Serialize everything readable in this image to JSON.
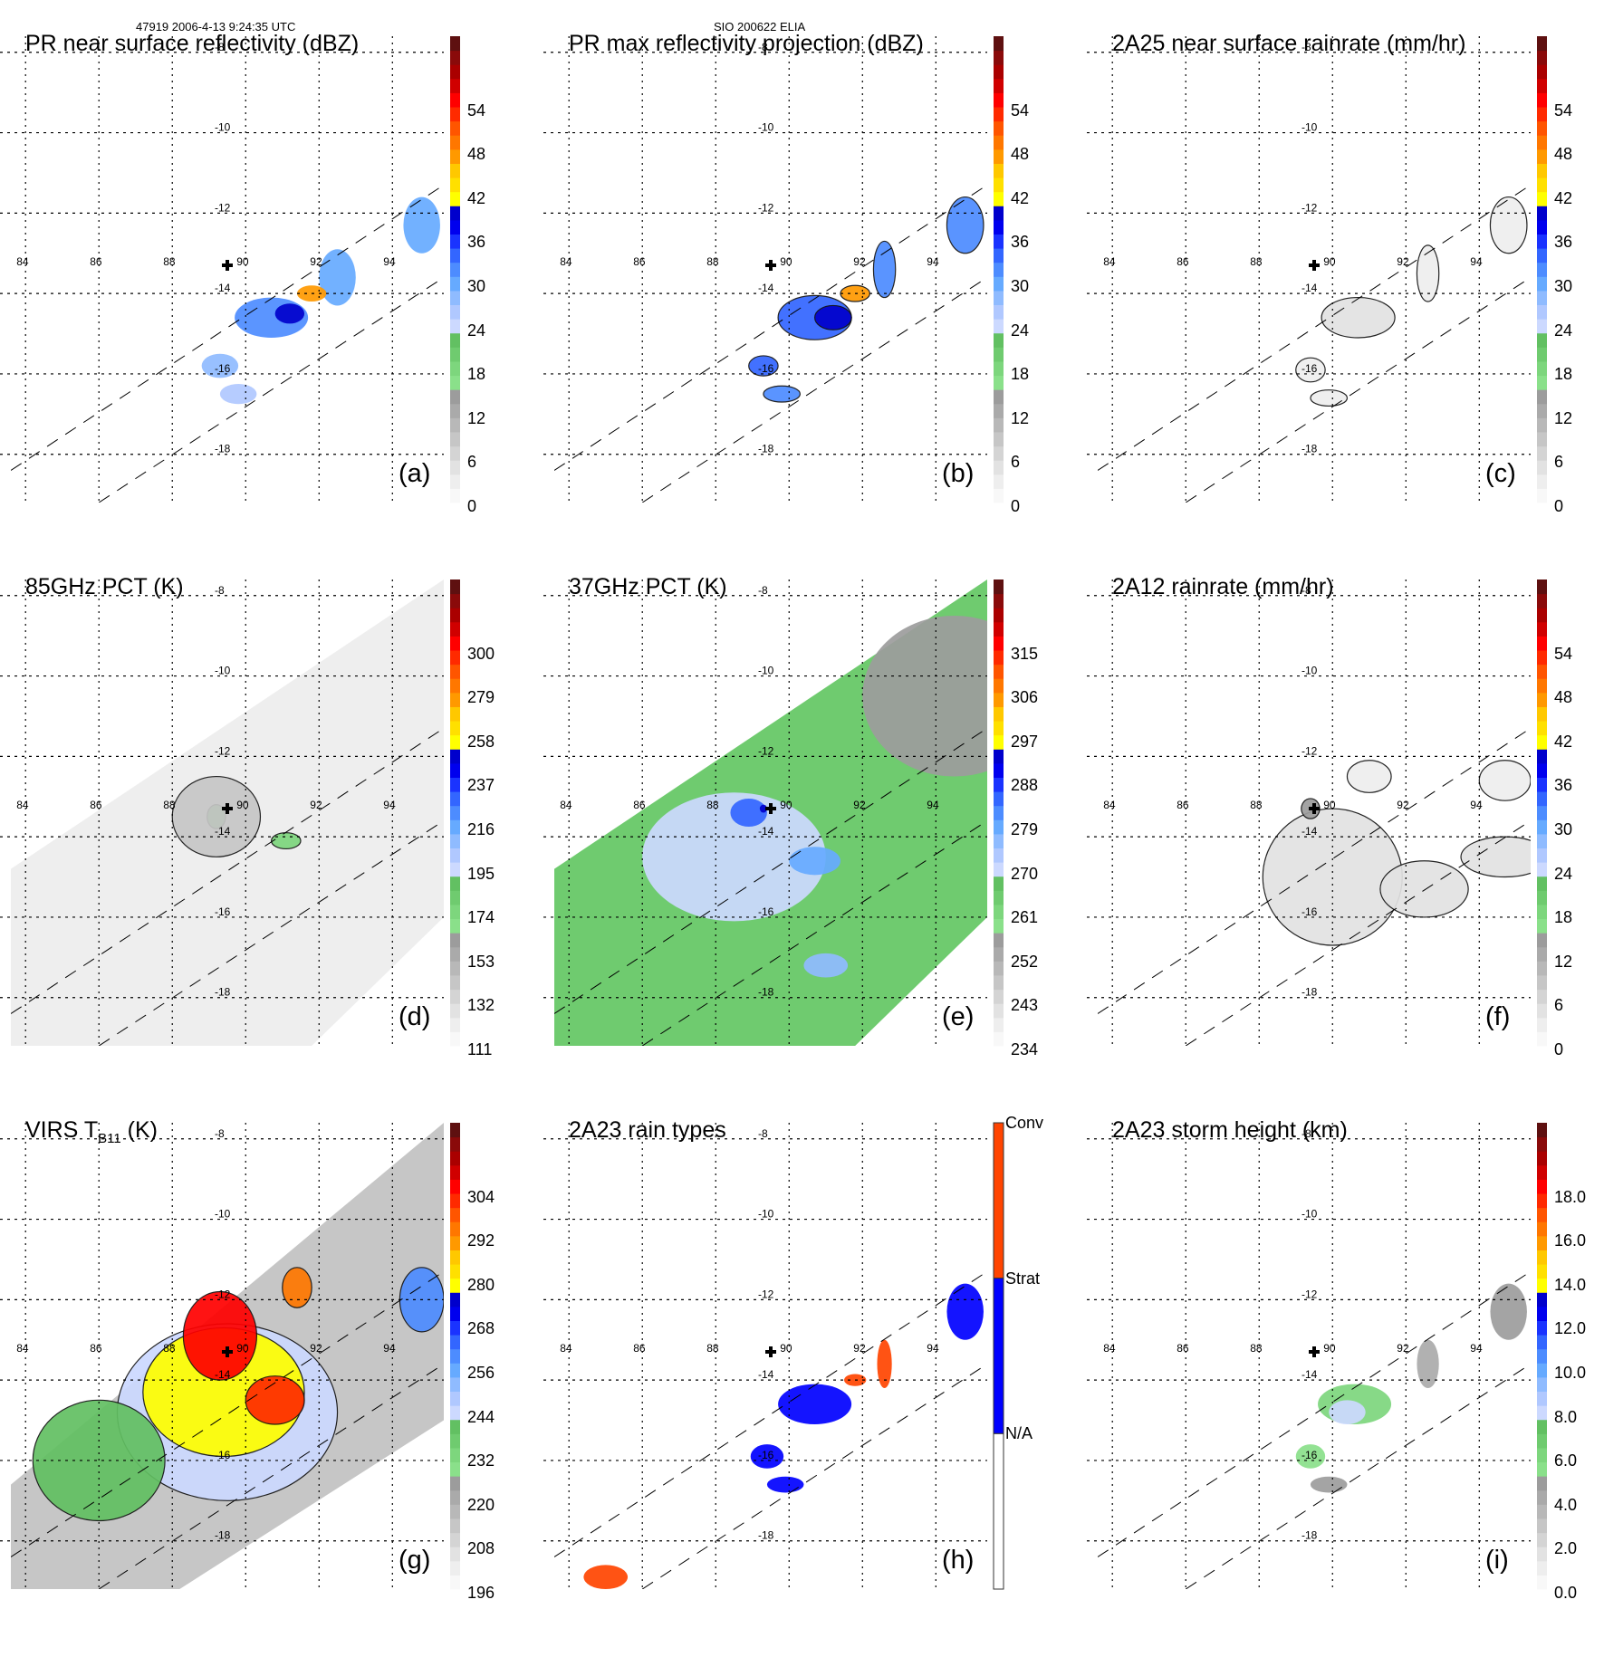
{
  "header": {
    "left": "47919 2006-4-13 9:24:35 UTC",
    "center": "SIO 200622 ELIA"
  },
  "chart_data": {
    "type": "heatmap",
    "grid": {
      "longitudes": [
        84,
        86,
        88,
        90,
        92,
        94
      ],
      "longitude_labels": [
        "84",
        "86",
        "88",
        "90",
        "92",
        "94"
      ],
      "latitudes": [
        -8,
        -10,
        -12,
        -14,
        -16,
        -18
      ],
      "latitude_labels": [
        "-8",
        "-10",
        "-12",
        "-14",
        "-16",
        "-18"
      ],
      "lon_range": [
        83.6,
        95.4
      ],
      "lat_range": [
        -19.2,
        -7.6
      ],
      "gridlines": "dotted",
      "storm_center": {
        "lon": 89.5,
        "lat": -13.3,
        "marker": "plus"
      },
      "swath_edges": [
        {
          "from": [
            83.6,
            -18.4
          ],
          "to": [
            95.4,
            -11.3
          ]
        },
        {
          "from": [
            86.0,
            -19.2
          ],
          "to": [
            95.4,
            -13.6
          ]
        }
      ]
    },
    "panels": [
      {
        "id": "a",
        "label": "(a)",
        "title": "PR near surface reflectivity (dBZ)",
        "colorbar": {
          "ticks": [
            "0",
            "6",
            "12",
            "18",
            "24",
            "30",
            "36",
            "42",
            "48",
            "54"
          ],
          "range": [
            0,
            60
          ],
          "kind": "continuous"
        },
        "field": "pr_swath",
        "features": [
          {
            "lon": 90.7,
            "lat": -14.6,
            "rx": 1.0,
            "ry": 0.5,
            "value": 30
          },
          {
            "lon": 91.2,
            "lat": -14.5,
            "rx": 0.4,
            "ry": 0.25,
            "value": 38
          },
          {
            "lon": 92.5,
            "lat": -13.6,
            "rx": 0.5,
            "ry": 0.7,
            "value": 28
          },
          {
            "lon": 89.3,
            "lat": -15.8,
            "rx": 0.5,
            "ry": 0.3,
            "value": 27
          },
          {
            "lon": 89.8,
            "lat": -16.5,
            "rx": 0.5,
            "ry": 0.25,
            "value": 25
          },
          {
            "lon": 94.8,
            "lat": -12.3,
            "rx": 0.5,
            "ry": 0.7,
            "value": 28
          },
          {
            "lon": 91.8,
            "lat": -14.0,
            "rx": 0.4,
            "ry": 0.2,
            "value": 44
          }
        ]
      },
      {
        "id": "b",
        "label": "(b)",
        "title": "PR max reflectivity projection (dBZ)",
        "colorbar": {
          "ticks": [
            "0",
            "6",
            "12",
            "18",
            "24",
            "30",
            "36",
            "42",
            "48",
            "54"
          ],
          "range": [
            0,
            60
          ],
          "kind": "continuous"
        },
        "field": "pr_swath",
        "features": [
          {
            "lon": 90.7,
            "lat": -14.6,
            "rx": 1.0,
            "ry": 0.55,
            "value": 31
          },
          {
            "lon": 91.2,
            "lat": -14.6,
            "rx": 0.5,
            "ry": 0.3,
            "value": 38
          },
          {
            "lon": 92.6,
            "lat": -13.4,
            "rx": 0.3,
            "ry": 0.7,
            "value": 30
          },
          {
            "lon": 89.3,
            "lat": -15.8,
            "rx": 0.4,
            "ry": 0.25,
            "value": 32
          },
          {
            "lon": 89.8,
            "lat": -16.5,
            "rx": 0.5,
            "ry": 0.2,
            "value": 30
          },
          {
            "lon": 94.8,
            "lat": -12.3,
            "rx": 0.5,
            "ry": 0.7,
            "value": 30
          },
          {
            "lon": 91.8,
            "lat": -14.0,
            "rx": 0.4,
            "ry": 0.2,
            "value": 44
          }
        ]
      },
      {
        "id": "c",
        "label": "(c)",
        "title": "2A25 near surface rainrate (mm/hr)",
        "colorbar": {
          "ticks": [
            "0",
            "6",
            "12",
            "18",
            "24",
            "30",
            "36",
            "42",
            "48",
            "54"
          ],
          "range": [
            0,
            60
          ],
          "kind": "continuous"
        },
        "field": "pr_swath",
        "features": [
          {
            "lon": 90.7,
            "lat": -14.6,
            "rx": 1.0,
            "ry": 0.5,
            "value": 4
          },
          {
            "lon": 92.6,
            "lat": -13.5,
            "rx": 0.3,
            "ry": 0.7,
            "value": 3
          },
          {
            "lon": 89.4,
            "lat": -15.9,
            "rx": 0.4,
            "ry": 0.3,
            "value": 3
          },
          {
            "lon": 89.9,
            "lat": -16.6,
            "rx": 0.5,
            "ry": 0.2,
            "value": 3
          },
          {
            "lon": 94.8,
            "lat": -12.3,
            "rx": 0.5,
            "ry": 0.7,
            "value": 3
          }
        ]
      },
      {
        "id": "d",
        "label": "(d)",
        "title": "85GHz PCT (K)",
        "colorbar": {
          "ticks": [
            "111",
            "132",
            "153",
            "174",
            "195",
            "216",
            "237",
            "258",
            "279",
            "300"
          ],
          "range": [
            90,
            300
          ],
          "kind": "continuous",
          "reversed": true
        },
        "field": "tmi_swath",
        "background_value": 288,
        "features": [
          {
            "lon": 89.2,
            "lat": -13.5,
            "rx": 0.25,
            "ry": 0.3,
            "value": 225
          },
          {
            "lon": 91.1,
            "lat": -14.1,
            "rx": 0.4,
            "ry": 0.2,
            "value": 240
          },
          {
            "lon": 89.2,
            "lat": -13.5,
            "rx": 1.2,
            "ry": 1.0,
            "value": 270
          }
        ]
      },
      {
        "id": "e",
        "label": "(e)",
        "title": "37GHz PCT (K)",
        "colorbar": {
          "ticks": [
            "234",
            "243",
            "252",
            "261",
            "270",
            "279",
            "288",
            "297",
            "306",
            "315"
          ],
          "range": [
            225,
            315
          ],
          "kind": "continuous",
          "reversed": true
        },
        "field": "tmi_swath",
        "background_value": 287,
        "features": [
          {
            "lon": 94.5,
            "lat": -10.5,
            "rx": 2.5,
            "ry": 2.0,
            "value": 295
          },
          {
            "lon": 88.5,
            "lat": -14.5,
            "rx": 2.5,
            "ry": 1.6,
            "value": 282
          },
          {
            "lon": 88.9,
            "lat": -13.4,
            "rx": 0.5,
            "ry": 0.35,
            "value": 268
          },
          {
            "lon": 90.7,
            "lat": -14.6,
            "rx": 0.7,
            "ry": 0.35,
            "value": 272
          },
          {
            "lon": 91.0,
            "lat": -17.2,
            "rx": 0.6,
            "ry": 0.3,
            "value": 275
          },
          {
            "lon": 89.3,
            "lat": -13.3,
            "rx": 0.1,
            "ry": 0.1,
            "value": 258
          }
        ]
      },
      {
        "id": "f",
        "label": "(f)",
        "title": "2A12 rainrate (mm/hr)",
        "colorbar": {
          "ticks": [
            "0",
            "6",
            "12",
            "18",
            "24",
            "30",
            "36",
            "42",
            "48",
            "54"
          ],
          "range": [
            0,
            60
          ],
          "kind": "continuous"
        },
        "field": "tmi_swath",
        "features": [
          {
            "lon": 90.0,
            "lat": -15.0,
            "rx": 1.9,
            "ry": 1.7,
            "value": 4
          },
          {
            "lon": 92.5,
            "lat": -15.3,
            "rx": 1.2,
            "ry": 0.7,
            "value": 4
          },
          {
            "lon": 94.7,
            "lat": -14.5,
            "rx": 1.2,
            "ry": 0.5,
            "value": 4
          },
          {
            "lon": 91.0,
            "lat": -12.5,
            "rx": 0.6,
            "ry": 0.4,
            "value": 3
          },
          {
            "lon": 94.7,
            "lat": -12.6,
            "rx": 0.7,
            "ry": 0.5,
            "value": 3
          },
          {
            "lon": 89.4,
            "lat": -13.3,
            "rx": 0.25,
            "ry": 0.25,
            "value": 14
          }
        ]
      },
      {
        "id": "g",
        "label": "(g)",
        "title": "VIRS T",
        "title_sub": "B11",
        "title_suffix": " (K)",
        "colorbar": {
          "ticks": [
            "196",
            "208",
            "220",
            "232",
            "244",
            "256",
            "268",
            "280",
            "292",
            "304"
          ],
          "range": [
            184,
            304
          ],
          "kind": "continuous",
          "reversed": true
        },
        "field": "virs_swath",
        "background_value": 288,
        "features": [
          {
            "lon": 89.5,
            "lat": -14.8,
            "rx": 3.0,
            "ry": 2.2,
            "value": 258
          },
          {
            "lon": 89.4,
            "lat": -14.3,
            "rx": 2.2,
            "ry": 1.6,
            "value": 225
          },
          {
            "lon": 89.3,
            "lat": -12.9,
            "rx": 1.0,
            "ry": 1.1,
            "value": 200
          },
          {
            "lon": 90.8,
            "lat": -14.5,
            "rx": 0.8,
            "ry": 0.6,
            "value": 205
          },
          {
            "lon": 91.4,
            "lat": -11.7,
            "rx": 0.4,
            "ry": 0.5,
            "value": 210
          },
          {
            "lon": 86.0,
            "lat": -16.0,
            "rx": 1.8,
            "ry": 1.5,
            "value": 262
          },
          {
            "lon": 94.8,
            "lat": -12.0,
            "rx": 0.6,
            "ry": 0.8,
            "value": 245
          }
        ]
      },
      {
        "id": "h",
        "label": "(h)",
        "title": "2A23 rain types",
        "colorbar": {
          "ticks": [
            "Conv",
            "Strat",
            "N/A"
          ],
          "kind": "categorical",
          "categories": [
            {
              "name": "Conv",
              "color": "#ff4400"
            },
            {
              "name": "Strat",
              "color": "#0000ff"
            },
            {
              "name": "N/A",
              "color": "#ffffff"
            }
          ]
        },
        "field": "pr_swath",
        "features": [
          {
            "lon": 90.7,
            "lat": -14.6,
            "rx": 1.0,
            "ry": 0.5,
            "category": "Strat"
          },
          {
            "lon": 89.4,
            "lat": -15.9,
            "rx": 0.45,
            "ry": 0.3,
            "category": "Strat"
          },
          {
            "lon": 89.9,
            "lat": -16.6,
            "rx": 0.5,
            "ry": 0.2,
            "category": "Strat"
          },
          {
            "lon": 94.8,
            "lat": -12.3,
            "rx": 0.5,
            "ry": 0.7,
            "category": "Strat"
          },
          {
            "lon": 92.6,
            "lat": -13.6,
            "rx": 0.2,
            "ry": 0.6,
            "category": "Conv"
          },
          {
            "lon": 91.8,
            "lat": -14.0,
            "rx": 0.3,
            "ry": 0.15,
            "category": "Conv"
          },
          {
            "lon": 85.0,
            "lat": -18.9,
            "rx": 0.6,
            "ry": 0.3,
            "category": "Conv"
          }
        ]
      },
      {
        "id": "i",
        "label": "(i)",
        "title": "2A23 storm height (km)",
        "colorbar": {
          "ticks": [
            "0.0",
            "2.0",
            "4.0",
            "6.0",
            "8.0",
            "10.0",
            "12.0",
            "14.0",
            "16.0",
            "18.0"
          ],
          "range": [
            0,
            20
          ],
          "kind": "continuous"
        },
        "field": "pr_swath",
        "features": [
          {
            "lon": 90.6,
            "lat": -14.6,
            "rx": 1.0,
            "ry": 0.5,
            "value": 5.5
          },
          {
            "lon": 90.4,
            "lat": -14.8,
            "rx": 0.5,
            "ry": 0.3,
            "value": 7.8
          },
          {
            "lon": 89.4,
            "lat": -15.9,
            "rx": 0.4,
            "ry": 0.3,
            "value": 5.0
          },
          {
            "lon": 89.9,
            "lat": -16.6,
            "rx": 0.5,
            "ry": 0.2,
            "value": 4.5
          },
          {
            "lon": 92.6,
            "lat": -13.6,
            "rx": 0.3,
            "ry": 0.6,
            "value": 4.2
          },
          {
            "lon": 94.8,
            "lat": -12.3,
            "rx": 0.5,
            "ry": 0.7,
            "value": 4.5
          }
        ]
      }
    ],
    "colormap": [
      "#f8f8f8",
      "#eeeeee",
      "#e2e2e2",
      "#d4d4d4",
      "#c6c6c6",
      "#b8b8b8",
      "#aaaaaa",
      "#9c9c9c",
      "#8ae08a",
      "#7dd67d",
      "#6fcb6f",
      "#62c062",
      "#ccd9ff",
      "#b0c8ff",
      "#8fbbff",
      "#66aaff",
      "#4d8cff",
      "#3366ff",
      "#1a33ff",
      "#0000ee",
      "#0000cc",
      "#ffff00",
      "#ffe000",
      "#ffc800",
      "#ff9900",
      "#ff7700",
      "#ff5500",
      "#ff2a00",
      "#ff0000",
      "#d00000",
      "#aa0000",
      "#8a0a0a",
      "#5e1010"
    ]
  }
}
